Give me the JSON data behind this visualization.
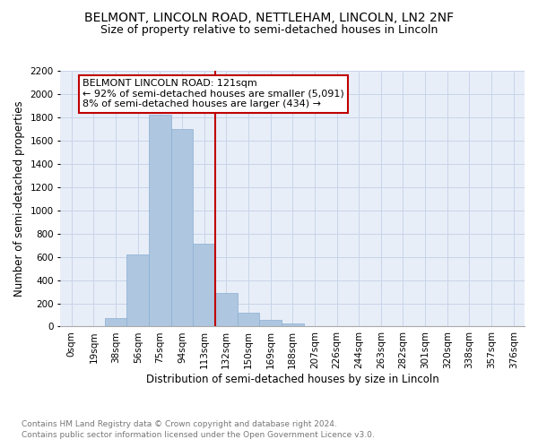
{
  "title": "BELMONT, LINCOLN ROAD, NETTLEHAM, LINCOLN, LN2 2NF",
  "subtitle": "Size of property relative to semi-detached houses in Lincoln",
  "xlabel": "Distribution of semi-detached houses by size in Lincoln",
  "ylabel": "Number of semi-detached properties",
  "footnote1": "Contains HM Land Registry data © Crown copyright and database right 2024.",
  "footnote2": "Contains public sector information licensed under the Open Government Licence v3.0.",
  "annotation_title": "BELMONT LINCOLN ROAD: 121sqm",
  "annotation_line1": "← 92% of semi-detached houses are smaller (5,091)",
  "annotation_line2": "8% of semi-detached houses are larger (434) →",
  "categories": [
    "0sqm",
    "19sqm",
    "38sqm",
    "56sqm",
    "75sqm",
    "94sqm",
    "113sqm",
    "132sqm",
    "150sqm",
    "169sqm",
    "188sqm",
    "207sqm",
    "226sqm",
    "244sqm",
    "263sqm",
    "282sqm",
    "301sqm",
    "320sqm",
    "338sqm",
    "357sqm",
    "376sqm"
  ],
  "values": [
    0,
    5,
    70,
    620,
    1820,
    1700,
    710,
    290,
    120,
    60,
    30,
    0,
    0,
    0,
    0,
    0,
    0,
    0,
    0,
    0,
    0
  ],
  "bar_color": "#aec6df",
  "bar_edgecolor": "#8aafd4",
  "vline_color": "#c00000",
  "vline_x": 6.5,
  "ylim": [
    0,
    2200
  ],
  "yticks": [
    0,
    200,
    400,
    600,
    800,
    1000,
    1200,
    1400,
    1600,
    1800,
    2000,
    2200
  ],
  "grid_color": "#c8d4e8",
  "background_color": "#e8eef8",
  "annotation_box_color": "#c00000",
  "title_fontsize": 10,
  "subtitle_fontsize": 9,
  "axis_label_fontsize": 8.5,
  "tick_fontsize": 7.5,
  "annotation_fontsize": 8
}
